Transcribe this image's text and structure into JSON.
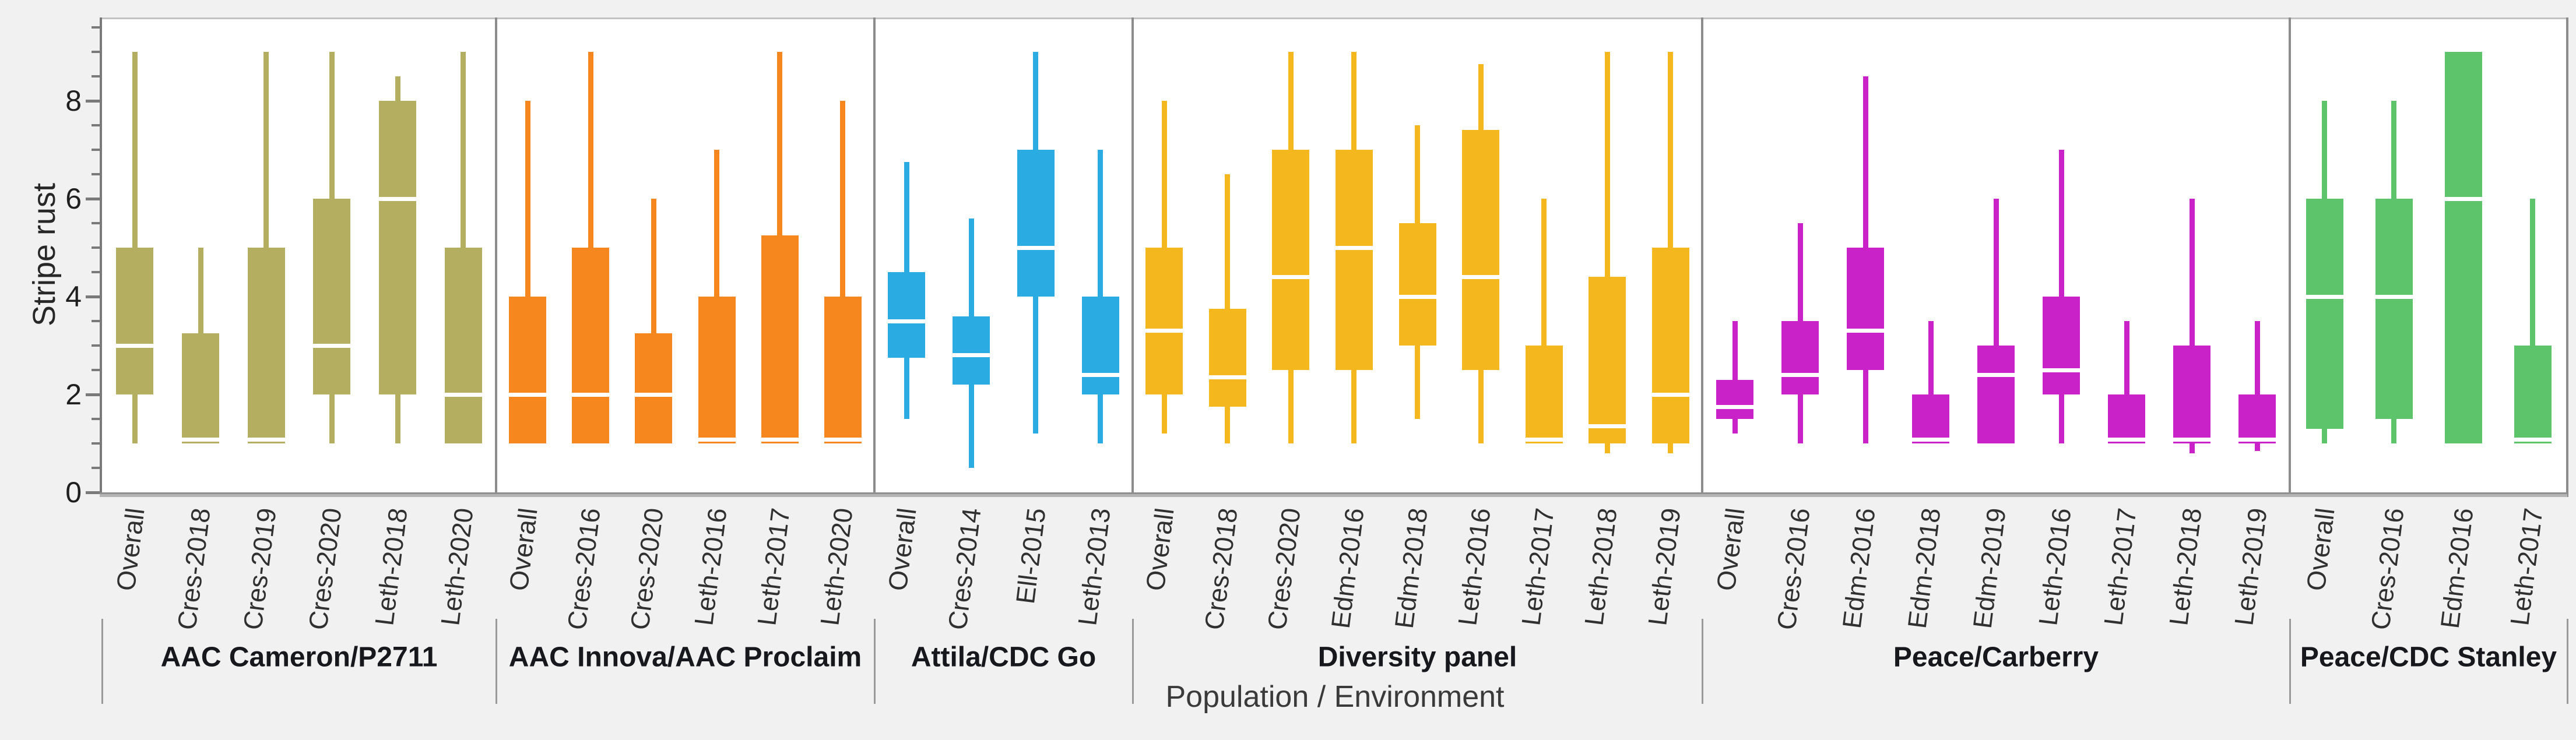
{
  "chart_data": {
    "type": "boxplot",
    "title": "",
    "ylabel": "Stripe rust",
    "xlabel": "Population / Environment",
    "ylim": [
      0,
      9.7
    ],
    "ytick_labels": [
      "0",
      "2",
      "4",
      "6",
      "8"
    ],
    "ytick_values": [
      0,
      2,
      4,
      6,
      8
    ],
    "yminor_step": 0.5,
    "yminor_max": 9.5,
    "grid": false,
    "legend": "none",
    "panels": [
      {
        "name": "AAC Cameron/P2711",
        "color": "#b3ae60",
        "boxes": [
          {
            "label": "Overall",
            "lo": 1,
            "q1": 2,
            "med": 3,
            "q3": 5,
            "hi": 9
          },
          {
            "label": "Cres-2018",
            "lo": 1,
            "q1": 1,
            "med": 1.08,
            "q3": 3.25,
            "hi": 5
          },
          {
            "label": "Cres-2019",
            "lo": 1,
            "q1": 1,
            "med": 1.08,
            "q3": 5,
            "hi": 9
          },
          {
            "label": "Cres-2020",
            "lo": 1,
            "q1": 2,
            "med": 3,
            "q3": 6,
            "hi": 9
          },
          {
            "label": "Leth-2018",
            "lo": 1,
            "q1": 2,
            "med": 6,
            "q3": 8,
            "hi": 8.5
          },
          {
            "label": "Leth-2020",
            "lo": 1,
            "q1": 1,
            "med": 2,
            "q3": 5,
            "hi": 9
          }
        ]
      },
      {
        "name": "AAC Innova/AAC Proclaim",
        "color": "#f6871f",
        "boxes": [
          {
            "label": "Overall",
            "lo": 1,
            "q1": 1,
            "med": 2,
            "q3": 4,
            "hi": 8
          },
          {
            "label": "Cres-2016",
            "lo": 1,
            "q1": 1,
            "med": 2,
            "q3": 5,
            "hi": 9
          },
          {
            "label": "Cres-2020",
            "lo": 1,
            "q1": 1,
            "med": 2,
            "q3": 3.25,
            "hi": 6
          },
          {
            "label": "Leth-2016",
            "lo": 1,
            "q1": 1,
            "med": 1.08,
            "q3": 4,
            "hi": 7
          },
          {
            "label": "Leth-2017",
            "lo": 1,
            "q1": 1,
            "med": 1.08,
            "q3": 5.25,
            "hi": 9
          },
          {
            "label": "Leth-2020",
            "lo": 1,
            "q1": 1,
            "med": 1.08,
            "q3": 4,
            "hi": 8
          }
        ]
      },
      {
        "name": "Attila/CDC Go",
        "color": "#2aace2",
        "boxes": [
          {
            "label": "Overall",
            "lo": 1.5,
            "q1": 2.75,
            "med": 3.5,
            "q3": 4.5,
            "hi": 6.75
          },
          {
            "label": "Cres-2014",
            "lo": 0.5,
            "q1": 2.2,
            "med": 2.8,
            "q3": 3.6,
            "hi": 5.6
          },
          {
            "label": "Ell-2015",
            "lo": 1.2,
            "q1": 4,
            "med": 5,
            "q3": 7,
            "hi": 9
          },
          {
            "label": "Leth-2013",
            "lo": 1,
            "q1": 2,
            "med": 2.4,
            "q3": 4,
            "hi": 7
          }
        ]
      },
      {
        "name": "Diversity panel",
        "color": "#f4b71d",
        "boxes": [
          {
            "label": "Overall",
            "lo": 1.2,
            "q1": 2,
            "med": 3.3,
            "q3": 5,
            "hi": 8
          },
          {
            "label": "Cres-2018",
            "lo": 1,
            "q1": 1.75,
            "med": 2.35,
            "q3": 3.75,
            "hi": 6.5
          },
          {
            "label": "Cres-2020",
            "lo": 1,
            "q1": 2.5,
            "med": 4.4,
            "q3": 7,
            "hi": 9
          },
          {
            "label": "Edm-2016",
            "lo": 1,
            "q1": 2.5,
            "med": 5,
            "q3": 7,
            "hi": 9
          },
          {
            "label": "Edm-2018",
            "lo": 1.5,
            "q1": 3,
            "med": 4,
            "q3": 5.5,
            "hi": 7.5
          },
          {
            "label": "Leth-2016",
            "lo": 1,
            "q1": 2.5,
            "med": 4.4,
            "q3": 7.4,
            "hi": 8.75
          },
          {
            "label": "Leth-2017",
            "lo": 1,
            "q1": 1,
            "med": 1.08,
            "q3": 3,
            "hi": 6
          },
          {
            "label": "Leth-2018",
            "lo": 0.8,
            "q1": 1,
            "med": 1.35,
            "q3": 4.4,
            "hi": 9
          },
          {
            "label": "Leth-2019",
            "lo": 0.8,
            "q1": 1,
            "med": 2,
            "q3": 5,
            "hi": 9
          }
        ]
      },
      {
        "name": "Peace/Carberry",
        "color": "#c822c8",
        "boxes": [
          {
            "label": "Overall",
            "lo": 1.2,
            "q1": 1.5,
            "med": 1.75,
            "q3": 2.3,
            "hi": 3.5
          },
          {
            "label": "Cres-2016",
            "lo": 1,
            "q1": 2,
            "med": 2.4,
            "q3": 3.5,
            "hi": 5.5
          },
          {
            "label": "Edm-2016",
            "lo": 1,
            "q1": 2.5,
            "med": 3.3,
            "q3": 5,
            "hi": 8.5
          },
          {
            "label": "Edm-2018",
            "lo": 1,
            "q1": 1,
            "med": 1.08,
            "q3": 2,
            "hi": 3.5
          },
          {
            "label": "Edm-2019",
            "lo": 1,
            "q1": 1,
            "med": 2.4,
            "q3": 3,
            "hi": 6
          },
          {
            "label": "Leth-2016",
            "lo": 1,
            "q1": 2,
            "med": 2.5,
            "q3": 4,
            "hi": 7
          },
          {
            "label": "Leth-2017",
            "lo": 1,
            "q1": 1,
            "med": 1.08,
            "q3": 2,
            "hi": 3.5
          },
          {
            "label": "Leth-2018",
            "lo": 0.8,
            "q1": 1,
            "med": 1.08,
            "q3": 3,
            "hi": 6
          },
          {
            "label": "Leth-2019",
            "lo": 0.85,
            "q1": 1,
            "med": 1.08,
            "q3": 2,
            "hi": 3.5
          }
        ]
      },
      {
        "name": "Peace/CDC Stanley",
        "color": "#5dc46c",
        "boxes": [
          {
            "label": "Overall",
            "lo": 1,
            "q1": 1.3,
            "med": 4,
            "q3": 6,
            "hi": 8
          },
          {
            "label": "Cres-2016",
            "lo": 1,
            "q1": 1.5,
            "med": 4,
            "q3": 6,
            "hi": 8
          },
          {
            "label": "Edm-2016",
            "lo": 1,
            "q1": 1,
            "med": 6,
            "q3": 9,
            "hi": 9
          },
          {
            "label": "Leth-2017",
            "lo": 1,
            "q1": 1,
            "med": 1.08,
            "q3": 3,
            "hi": 6
          }
        ]
      }
    ]
  }
}
